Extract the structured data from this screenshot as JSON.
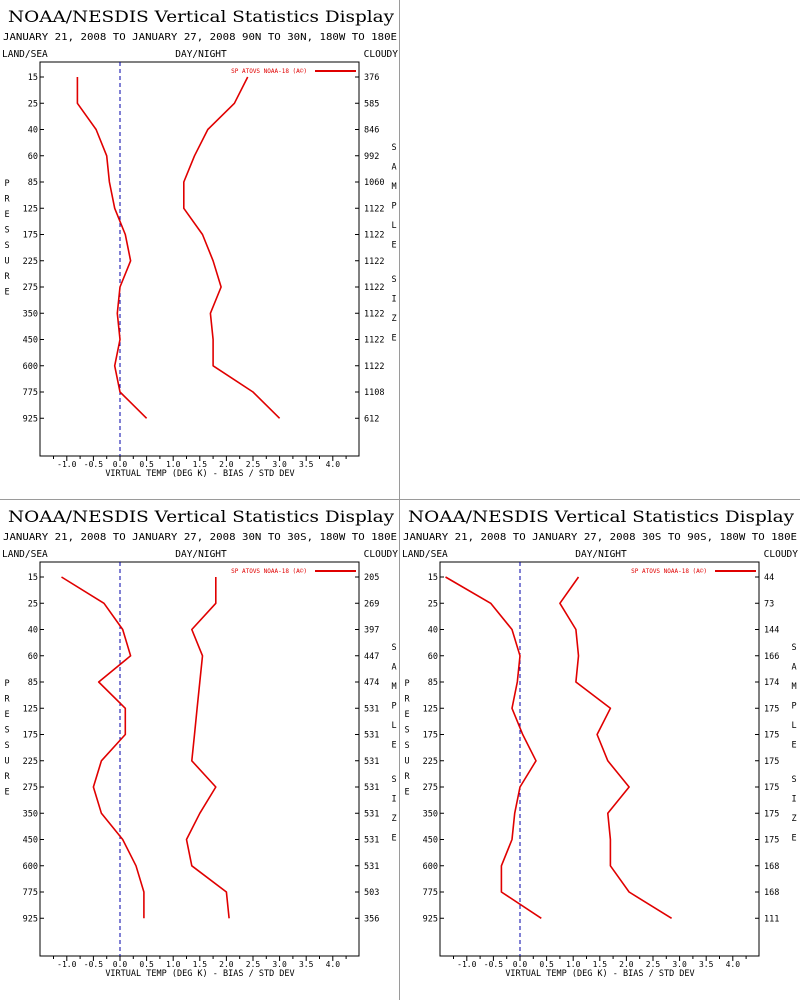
{
  "panels": [
    {
      "title": "NOAA/NESDIS Vertical Statistics Display",
      "subtitle": "JANUARY 21, 2008 TO JANUARY 27, 2008 90N TO 30N, 180W TO 180E",
      "top_left": "LAND/SEA",
      "top_center": "DAY/NIGHT",
      "top_right": "CLOUDY",
      "legend": "SP ATOVS NOAA-18 (A©)",
      "left_axis_title": "PRESSURE",
      "right_axis_title": "SAMPLE SIZE",
      "xlabel": "VIRTUAL TEMP (DEG K) - BIAS / STD DEV",
      "x_ticks": [
        "-1.0",
        "-0.5",
        "0.0",
        "0.5",
        "1.0",
        "1.5",
        "2.0",
        "2.5",
        "3.0",
        "3.5",
        "4.0"
      ],
      "pressure_levels": [
        "15",
        "25",
        "40",
        "60",
        "85",
        "125",
        "175",
        "225",
        "275",
        "350",
        "450",
        "600",
        "775",
        "925"
      ],
      "sample_sizes": [
        "376",
        "585",
        "846",
        "992",
        "1060",
        "1122",
        "1122",
        "1122",
        "1122",
        "1122",
        "1122",
        "1122",
        "1108",
        "612"
      ]
    },
    {
      "title": "NOAA/NESDIS Vertical Statistics Display",
      "subtitle": "JANUARY 21, 2008 TO JANUARY 27, 2008 30N TO 30S, 180W TO 180E",
      "top_left": "LAND/SEA",
      "top_center": "DAY/NIGHT",
      "top_right": "CLOUDY",
      "legend": "SP ATOVS NOAA-18 (A©)",
      "left_axis_title": "PRESSURE",
      "right_axis_title": "SAMPLE SIZE",
      "xlabel": "VIRTUAL TEMP (DEG K) - BIAS / STD DEV",
      "x_ticks": [
        "-1.0",
        "-0.5",
        "0.0",
        "0.5",
        "1.0",
        "1.5",
        "2.0",
        "2.5",
        "3.0",
        "3.5",
        "4.0"
      ],
      "pressure_levels": [
        "15",
        "25",
        "40",
        "60",
        "85",
        "125",
        "175",
        "225",
        "275",
        "350",
        "450",
        "600",
        "775",
        "925"
      ],
      "sample_sizes": [
        "205",
        "269",
        "397",
        "447",
        "474",
        "531",
        "531",
        "531",
        "531",
        "531",
        "531",
        "531",
        "503",
        "356"
      ]
    },
    {
      "title": "NOAA/NESDIS Vertical Statistics Display",
      "subtitle": "JANUARY 21, 2008 TO JANUARY 27, 2008 30S TO 90S, 180W TO 180E",
      "top_left": "LAND/SEA",
      "top_center": "DAY/NIGHT",
      "top_right": "CLOUDY",
      "legend": "SP ATOVS NOAA-18 (A©)",
      "left_axis_title": "PRESSURE",
      "right_axis_title": "SAMPLE SIZE",
      "xlabel": "VIRTUAL TEMP (DEG K) - BIAS / STD DEV",
      "x_ticks": [
        "-1.0",
        "-0.5",
        "0.0",
        "0.5",
        "1.0",
        "1.5",
        "2.0",
        "2.5",
        "3.0",
        "3.5",
        "4.0"
      ],
      "pressure_levels": [
        "15",
        "25",
        "40",
        "60",
        "85",
        "125",
        "175",
        "225",
        "275",
        "350",
        "450",
        "600",
        "775",
        "925"
      ],
      "sample_sizes": [
        "44",
        "73",
        "144",
        "166",
        "174",
        "175",
        "175",
        "175",
        "175",
        "175",
        "175",
        "168",
        "168",
        "111"
      ]
    }
  ],
  "chart_data": [
    {
      "type": "line",
      "title": "NOAA/NESDIS Vertical Statistics Display",
      "xlabel": "VIRTUAL TEMP (DEG K) - BIAS / STD DEV",
      "ylabel": "PRESSURE",
      "xlim": [
        -1.5,
        4.5
      ],
      "y_categories": [
        "15",
        "25",
        "40",
        "60",
        "85",
        "125",
        "175",
        "225",
        "275",
        "350",
        "450",
        "600",
        "775",
        "925"
      ],
      "y_inverted": true,
      "legend_position": "top-right",
      "series": [
        {
          "name": "SP ATOVS NOAA-18 (A©)",
          "values": [
            -0.8,
            -0.8,
            -0.45,
            -0.25,
            -0.2,
            -0.1,
            0.1,
            0.2,
            0.0,
            -0.05,
            0.0,
            -0.1,
            0.0,
            0.5
          ]
        },
        {
          "values": [
            2.4,
            2.15,
            1.65,
            1.4,
            1.2,
            1.2,
            1.55,
            1.75,
            1.9,
            1.7,
            1.75,
            1.75,
            2.5,
            3.0
          ]
        }
      ],
      "vline": 0.0
    },
    {
      "type": "line",
      "title": "NOAA/NESDIS Vertical Statistics Display",
      "xlabel": "VIRTUAL TEMP (DEG K) - BIAS / STD DEV",
      "ylabel": "PRESSURE",
      "xlim": [
        -1.5,
        4.5
      ],
      "y_categories": [
        "15",
        "25",
        "40",
        "60",
        "85",
        "125",
        "175",
        "225",
        "275",
        "350",
        "450",
        "600",
        "775",
        "925"
      ],
      "y_inverted": true,
      "legend_position": "top-right",
      "series": [
        {
          "name": "SP ATOVS NOAA-18 (A©)",
          "values": [
            -1.1,
            -0.3,
            0.05,
            0.2,
            -0.4,
            0.1,
            0.1,
            -0.35,
            -0.5,
            -0.35,
            0.05,
            0.3,
            0.45,
            0.45
          ]
        },
        {
          "values": [
            1.8,
            1.8,
            1.35,
            1.55,
            1.5,
            1.45,
            1.4,
            1.35,
            1.8,
            1.5,
            1.25,
            1.35,
            2.0,
            2.05
          ]
        }
      ],
      "vline": 0.0
    },
    {
      "type": "line",
      "title": "NOAA/NESDIS Vertical Statistics Display",
      "xlabel": "VIRTUAL TEMP (DEG K) - BIAS / STD DEV",
      "ylabel": "PRESSURE",
      "xlim": [
        -1.5,
        4.5
      ],
      "y_categories": [
        "15",
        "25",
        "40",
        "60",
        "85",
        "125",
        "175",
        "225",
        "275",
        "350",
        "450",
        "600",
        "775",
        "925"
      ],
      "y_inverted": true,
      "legend_position": "top-right",
      "series": [
        {
          "name": "SP ATOVS NOAA-18 (A©)",
          "values": [
            -1.4,
            -0.55,
            -0.15,
            0.0,
            -0.05,
            -0.15,
            0.05,
            0.3,
            0.0,
            -0.1,
            -0.15,
            -0.35,
            -0.35,
            0.4
          ]
        },
        {
          "values": [
            1.1,
            0.75,
            1.05,
            1.1,
            1.05,
            1.7,
            1.45,
            1.65,
            2.05,
            1.65,
            1.7,
            1.7,
            2.05,
            2.85
          ]
        }
      ],
      "vline": 0.0
    }
  ],
  "colors": {
    "series": "#e00000",
    "axis": "#000000",
    "zero_line": "#0000aa",
    "divider": "#9a9a9a"
  }
}
